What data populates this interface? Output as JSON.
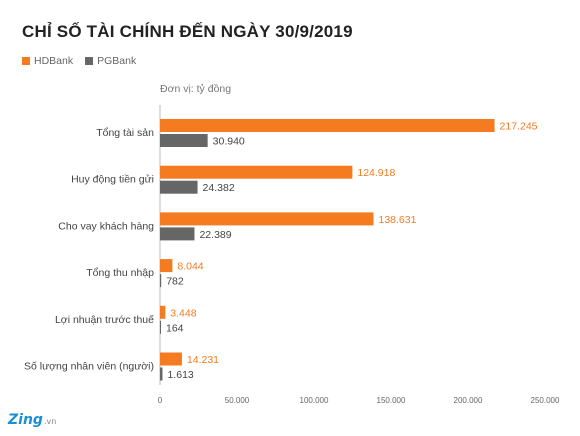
{
  "chart_data": {
    "type": "bar",
    "orientation": "horizontal",
    "title": "CHỈ SỐ TÀI CHÍNH ĐẾN NGÀY 30/9/2019",
    "unit_label": "Đơn vị: tỷ đồng",
    "categories": [
      "Tổng tài sản",
      "Huy động tiền gửi",
      "Cho vay khách hàng",
      "Tổng thu nhập",
      "Lợi nhuận trước thuế",
      "Số lượng nhân viên (người)"
    ],
    "series": [
      {
        "name": "HDBank",
        "color": "#f47b20",
        "values": [
          217245,
          124918,
          138631,
          8044,
          3448,
          14231
        ],
        "labels": [
          "217.245",
          "124.918",
          "138.631",
          "8.044",
          "3.448",
          "14.231"
        ]
      },
      {
        "name": "PGBank",
        "color": "#666666",
        "values": [
          30940,
          24382,
          22389,
          782,
          164,
          1613
        ],
        "labels": [
          "30.940",
          "24.382",
          "22.389",
          "782",
          "164",
          "1.613"
        ]
      }
    ],
    "xlim": [
      0,
      250000
    ],
    "xticks": [
      0,
      50000,
      100000,
      150000,
      200000,
      250000
    ],
    "xtick_labels": [
      "0",
      "50.000",
      "100.000",
      "150.000",
      "200.000",
      "250.000"
    ],
    "legend_position": "top-left",
    "grid": false
  },
  "brand": {
    "main": "Zing",
    "sub": ".vn"
  }
}
